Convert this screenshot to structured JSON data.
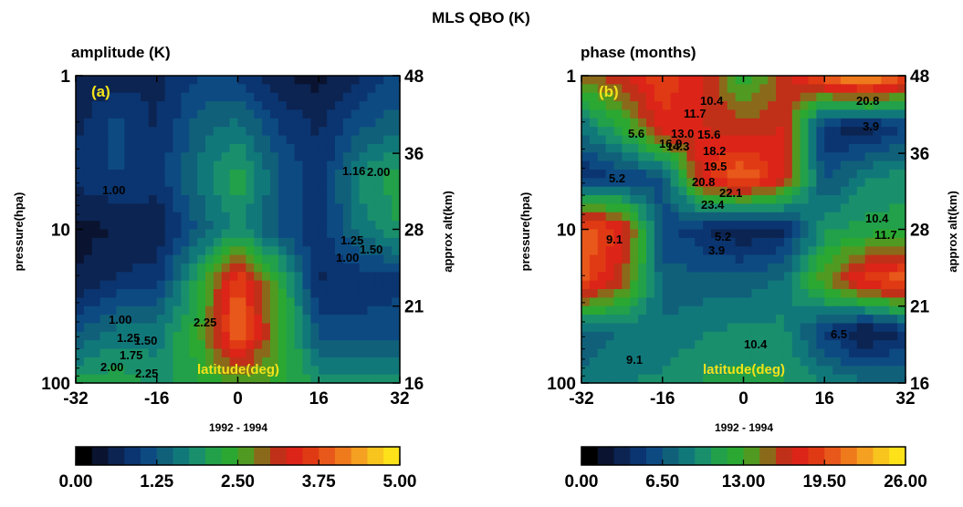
{
  "figure_title": "MLS QBO (K)",
  "chart_data": [
    {
      "type": "heatmap",
      "title": "amplitude (K)",
      "panel_label": "(a)",
      "ylabel": "pressure(hpa)",
      "ylabel_right": "approx alt(km)",
      "inner_label": "latitude(deg)",
      "date_range": "1992 -  1994",
      "x": [
        -32,
        -24,
        -16,
        -8,
        0,
        8,
        16,
        24,
        32
      ],
      "y": [
        1,
        2.2,
        4.6,
        10,
        22,
        46,
        100
      ],
      "x_ticks": [
        "-32",
        "-16",
        "0",
        "16",
        "32"
      ],
      "x_tick_values": [
        -32,
        -16,
        0,
        16,
        32
      ],
      "y_ticks": [
        "1",
        "10",
        "100"
      ],
      "y_tick_values": [
        1,
        10,
        100
      ],
      "y_right_ticks": [
        "48",
        "36",
        "28",
        "21",
        "16"
      ],
      "y_right_tick_values": [
        1,
        3.2,
        10,
        31.6,
        100
      ],
      "y_scale": "log",
      "xlim": [
        -32,
        32
      ],
      "ylim": [
        100,
        1
      ],
      "z": [
        [
          0.5,
          0.6,
          0.7,
          1.0,
          1.0,
          0.5,
          0.4,
          0.7,
          1.1
        ],
        [
          0.7,
          1.1,
          0.7,
          1.4,
          1.6,
          1.0,
          0.7,
          1.2,
          1.4
        ],
        [
          0.8,
          1.0,
          0.9,
          1.5,
          2.2,
          1.3,
          0.8,
          1.8,
          2.2
        ],
        [
          0.4,
          0.5,
          0.5,
          1.3,
          1.8,
          1.2,
          0.8,
          1.6,
          2.0
        ],
        [
          0.5,
          0.8,
          0.9,
          2.1,
          3.8,
          2.4,
          0.7,
          0.8,
          0.9
        ],
        [
          1.2,
          1.6,
          1.6,
          2.4,
          4.1,
          2.6,
          1.2,
          1.1,
          1.2
        ],
        [
          2.1,
          2.2,
          1.9,
          2.2,
          2.6,
          2.4,
          1.9,
          1.9,
          1.9
        ]
      ],
      "contour_labels": [
        "1.00",
        "1.16",
        "2.00",
        "1.25",
        "1.50",
        "1.00",
        "2.25",
        "1.00",
        "1.25",
        "1.50",
        "1.75",
        "2.00",
        "2.25"
      ],
      "colorbar": {
        "range": [
          0,
          5
        ],
        "ticks": [
          "0.00",
          "1.25",
          "2.50",
          "3.75",
          "5.00"
        ]
      }
    },
    {
      "type": "heatmap",
      "title": "phase (months)",
      "panel_label": "(b)",
      "ylabel": "pressure(hpa)",
      "ylabel_right": "approx alt(km)",
      "inner_label": "latitude(deg)",
      "date_range": "1992 -  1994",
      "x": [
        -32,
        -24,
        -16,
        -8,
        0,
        8,
        16,
        24,
        32
      ],
      "y": [
        1,
        2.2,
        4.6,
        10,
        22,
        46,
        100
      ],
      "x_ticks": [
        "-32",
        "-16",
        "0",
        "16",
        "32"
      ],
      "x_tick_values": [
        -32,
        -16,
        0,
        16,
        32
      ],
      "y_ticks": [
        "1",
        "10",
        "100"
      ],
      "y_tick_values": [
        1,
        10,
        100
      ],
      "y_right_ticks": [
        "48",
        "36",
        "28",
        "21",
        "16"
      ],
      "y_right_tick_values": [
        1,
        3.2,
        10,
        31.6,
        100
      ],
      "y_scale": "log",
      "xlim": [
        -32,
        32
      ],
      "ylim": [
        100,
        1
      ],
      "z": [
        [
          15.0,
          17.0,
          19.0,
          17.0,
          12.0,
          16.0,
          21.0,
          24.0,
          20.0
        ],
        [
          8.0,
          12.0,
          18.0,
          17.0,
          16.0,
          17.0,
          4.0,
          3.0,
          5.0
        ],
        [
          4.0,
          5.0,
          6.0,
          18.0,
          21.0,
          17.0,
          6.0,
          9.0,
          10.0
        ],
        [
          21.0,
          18.0,
          6.0,
          4.0,
          2.5,
          3.5,
          10.0,
          11.0,
          11.0
        ],
        [
          20.0,
          16.0,
          7.0,
          7.0,
          7.0,
          8.0,
          14.0,
          19.0,
          21.0
        ],
        [
          7.0,
          8.0,
          8.0,
          9.0,
          9.5,
          9.5,
          5.0,
          2.0,
          4.0
        ],
        [
          8.0,
          9.0,
          9.5,
          10.5,
          11.0,
          10.5,
          9.0,
          8.0,
          8.0
        ]
      ],
      "contour_labels": [
        "10.4",
        "11.7",
        "13.0",
        "14.3",
        "15.6",
        "16.9",
        "18.2",
        "19.5",
        "20.8",
        "22.1",
        "23.4",
        "5.6",
        "5.2",
        "9.1",
        "10.4",
        "11.7",
        "5.2",
        "3.9",
        "6.5",
        "9.1",
        "10.4",
        "20.8",
        "3.9"
      ],
      "colorbar": {
        "range": [
          0,
          26
        ],
        "ticks": [
          "0.00",
          "6.50",
          "13.00",
          "19.50",
          "26.00"
        ]
      }
    }
  ],
  "colormap": [
    "#000000",
    "#0a1430",
    "#0c2452",
    "#0b3570",
    "#0d4a82",
    "#10607a",
    "#11787a",
    "#1a8f6c",
    "#22a04a",
    "#2aa832",
    "#509a22",
    "#8a6a1a",
    "#c03018",
    "#dc2418",
    "#e03a14",
    "#e8581a",
    "#ef7a1c",
    "#f5a020",
    "#f8c41e",
    "#fde21a"
  ]
}
